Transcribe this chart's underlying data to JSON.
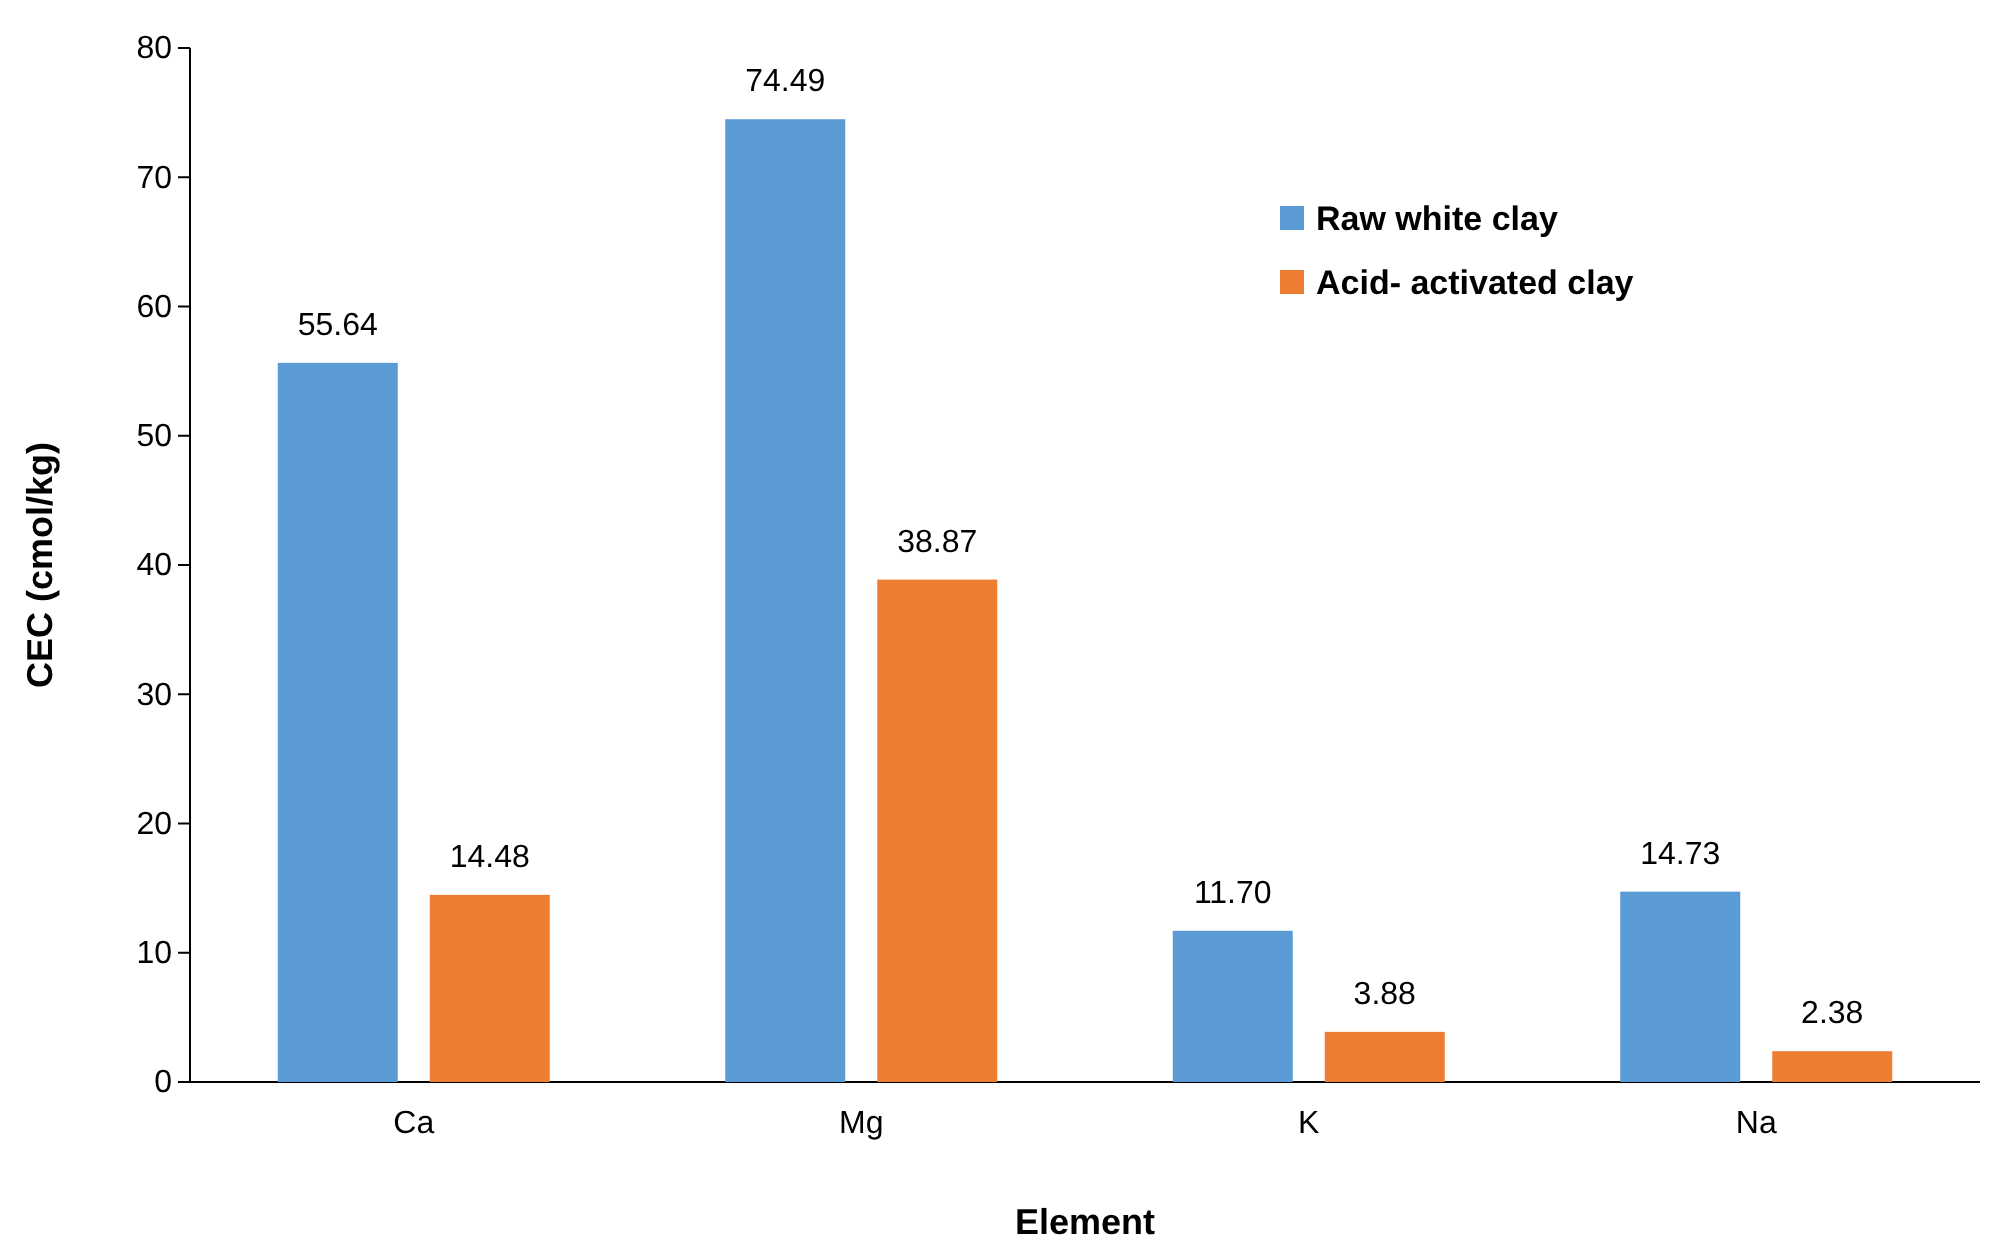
{
  "chart_data": {
    "type": "bar",
    "xlabel": "Element",
    "ylabel": "CEC (cmol/kg)",
    "categories": [
      "Ca",
      "Mg",
      "K",
      "Na"
    ],
    "series": [
      {
        "name": "Raw white clay",
        "color": "#5b9bd5",
        "values": [
          55.64,
          74.49,
          11.7,
          14.73
        ],
        "value_labels": [
          "55.64",
          "74.49",
          "11.70",
          "14.73"
        ]
      },
      {
        "name": "Acid- activated clay",
        "color": "#ed7d31",
        "values": [
          14.48,
          38.87,
          3.88,
          2.38
        ],
        "value_labels": [
          "14.48",
          "38.87",
          "3.88",
          "2.38"
        ]
      }
    ],
    "ylim": [
      0,
      80
    ],
    "yticks": [
      0,
      10,
      20,
      30,
      40,
      50,
      60,
      70,
      80
    ],
    "grid": false,
    "legend": "top right"
  }
}
